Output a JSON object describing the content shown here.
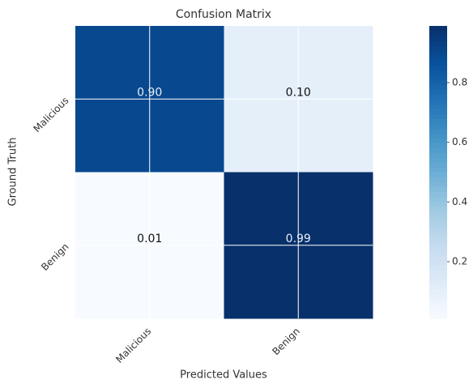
{
  "chart_data": {
    "type": "heatmap",
    "title": "Confusion Matrix",
    "xlabel": "Predicted Values",
    "ylabel": "Ground Truth",
    "x_categories": [
      "Malicious",
      "Benign"
    ],
    "y_categories": [
      "Malicious",
      "Benign"
    ],
    "values": [
      [
        0.9,
        0.1
      ],
      [
        0.01,
        0.99
      ]
    ],
    "value_labels": [
      [
        "0.90",
        "0.10"
      ],
      [
        "0.01",
        "0.99"
      ]
    ],
    "clim": [
      0.01,
      0.99
    ],
    "cticks": [
      0.2,
      0.4,
      0.6,
      0.8
    ],
    "colormap": [
      "#f7fbff",
      "#deebf7",
      "#c6dbef",
      "#9ecae1",
      "#6baed6",
      "#4292c6",
      "#2171b5",
      "#08519c",
      "#08306b"
    ],
    "grid": true
  }
}
